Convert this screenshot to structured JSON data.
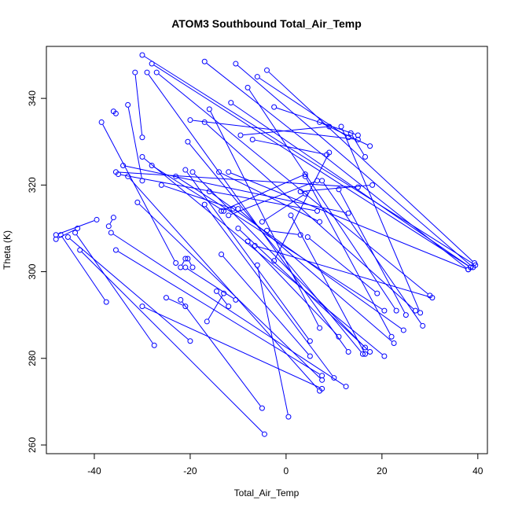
{
  "chart_data": {
    "type": "line",
    "title": "ATOM3 Southbound Total_Air_Temp",
    "xlabel": "Total_Air_Temp",
    "ylabel": "Theta (K)",
    "xlim": [
      -50,
      42
    ],
    "ylim": [
      258,
      352
    ],
    "xticks": [
      -40,
      -20,
      0,
      20,
      40
    ],
    "yticks": [
      260,
      280,
      300,
      320,
      340
    ],
    "xtick_labels": [
      "-40",
      "-20",
      "0",
      "20",
      "40"
    ],
    "ytick_labels": [
      "260",
      "280",
      "300",
      "320",
      "340"
    ],
    "grid": false,
    "legend": "none",
    "marker": "open-circle",
    "color": "#0000ff",
    "series": [
      {
        "x": [
          -30,
          39.5
        ],
        "y": [
          350,
          301.5
        ]
      },
      {
        "x": [
          -28,
          38.5
        ],
        "y": [
          348,
          301
        ]
      },
      {
        "x": [
          -17,
          38
        ],
        "y": [
          348.5,
          300.5
        ]
      },
      {
        "x": [
          -10.5,
          39
        ],
        "y": [
          348,
          301
        ]
      },
      {
        "x": [
          -4,
          39.3
        ],
        "y": [
          346.5,
          302
        ]
      },
      {
        "x": [
          -27,
          30
        ],
        "y": [
          346,
          294.5
        ]
      },
      {
        "x": [
          -31.5,
          -30
        ],
        "y": [
          346,
          331
        ]
      },
      {
        "x": [
          -29,
          13
        ],
        "y": [
          346,
          281.5
        ]
      },
      {
        "x": [
          -33,
          -30
        ],
        "y": [
          338.5,
          321
        ]
      },
      {
        "x": [
          -36,
          -35.5
        ],
        "y": [
          337,
          336.5
        ]
      },
      {
        "x": [
          -38.5,
          -23
        ],
        "y": [
          334.5,
          302
        ]
      },
      {
        "x": [
          -16,
          7
        ],
        "y": [
          337.5,
          287
        ]
      },
      {
        "x": [
          -20,
          15
        ],
        "y": [
          335,
          330.5
        ]
      },
      {
        "x": [
          -17,
          27
        ],
        "y": [
          334.5,
          291
        ]
      },
      {
        "x": [
          -11.5,
          38.5
        ],
        "y": [
          339,
          301
        ]
      },
      {
        "x": [
          -6,
          13
        ],
        "y": [
          345,
          331
        ]
      },
      {
        "x": [
          -8,
          23
        ],
        "y": [
          342.5,
          291
        ]
      },
      {
        "x": [
          -2.5,
          15
        ],
        "y": [
          338,
          331.5
        ]
      },
      {
        "x": [
          7,
          17.5
        ],
        "y": [
          334.5,
          329
        ]
      },
      {
        "x": [
          11.5,
          28
        ],
        "y": [
          333.5,
          290.5
        ]
      },
      {
        "x": [
          13.5,
          16.5
        ],
        "y": [
          332,
          326.5
        ]
      },
      {
        "x": [
          -9.5,
          9
        ],
        "y": [
          331.5,
          333.5
        ]
      },
      {
        "x": [
          -7,
          8.5
        ],
        "y": [
          330.5,
          327
        ]
      },
      {
        "x": [
          -20.5,
          16
        ],
        "y": [
          330,
          281
        ]
      },
      {
        "x": [
          -30,
          20.5
        ],
        "y": [
          326.5,
          280.5
        ]
      },
      {
        "x": [
          -19.5,
          16.5
        ],
        "y": [
          323,
          282.5
        ]
      },
      {
        "x": [
          -12,
          38
        ],
        "y": [
          323,
          300.5
        ]
      },
      {
        "x": [
          -35.5,
          15
        ],
        "y": [
          323,
          319.5
        ]
      },
      {
        "x": [
          -34,
          13
        ],
        "y": [
          324.5,
          313.5
        ]
      },
      {
        "x": [
          -35,
          6.5
        ],
        "y": [
          322.5,
          314
        ]
      },
      {
        "x": [
          -16,
          24.5
        ],
        "y": [
          318.5,
          286.5
        ]
      },
      {
        "x": [
          -23,
          20.5
        ],
        "y": [
          322,
          291
        ]
      },
      {
        "x": [
          -28,
          -13
        ],
        "y": [
          324.5,
          314
        ]
      },
      {
        "x": [
          -33,
          7
        ],
        "y": [
          322,
          272.5
        ]
      },
      {
        "x": [
          -26,
          -11
        ],
        "y": [
          320,
          314.5
        ]
      },
      {
        "x": [
          -31,
          7.5
        ],
        "y": [
          316,
          275
        ]
      },
      {
        "x": [
          -17,
          10
        ],
        "y": [
          315.5,
          275.5
        ]
      },
      {
        "x": [
          -14,
          7
        ],
        "y": [
          323,
          311.5
        ]
      },
      {
        "x": [
          -21,
          5
        ],
        "y": [
          323.5,
          284
        ]
      },
      {
        "x": [
          -13.5,
          4
        ],
        "y": [
          314,
          322.5
        ]
      },
      {
        "x": [
          -10,
          17.5
        ],
        "y": [
          310,
          281.5
        ]
      },
      {
        "x": [
          -12,
          6.5
        ],
        "y": [
          313,
          321
        ]
      },
      {
        "x": [
          -4,
          3
        ],
        "y": [
          309.5,
          308.5
        ]
      },
      {
        "x": [
          -8,
          11
        ],
        "y": [
          307,
          285
        ]
      },
      {
        "x": [
          -6,
          0.5
        ],
        "y": [
          301.5,
          266.5
        ]
      },
      {
        "x": [
          -2.5,
          9
        ],
        "y": [
          302.5,
          327.5
        ]
      },
      {
        "x": [
          -6.5,
          30.5
        ],
        "y": [
          306,
          294
        ]
      },
      {
        "x": [
          -5,
          4
        ],
        "y": [
          311.5,
          318
        ]
      },
      {
        "x": [
          1,
          16.5
        ],
        "y": [
          313,
          281
        ]
      },
      {
        "x": [
          -10,
          22.5
        ],
        "y": [
          314.5,
          283.5
        ]
      },
      {
        "x": [
          3,
          18
        ],
        "y": [
          318.5,
          320
        ]
      },
      {
        "x": [
          4,
          22
        ],
        "y": [
          322,
          285
        ]
      },
      {
        "x": [
          7.5,
          28.5
        ],
        "y": [
          321,
          287.5
        ]
      },
      {
        "x": [
          11,
          25
        ],
        "y": [
          319,
          290
        ]
      },
      {
        "x": [
          4.5,
          19
        ],
        "y": [
          308,
          295
        ]
      },
      {
        "x": [
          -36.5,
          12.5
        ],
        "y": [
          309,
          273.5
        ]
      },
      {
        "x": [
          -35.5,
          7.5
        ],
        "y": [
          305,
          276
        ]
      },
      {
        "x": [
          -37,
          -36
        ],
        "y": [
          310.5,
          312.5
        ]
      },
      {
        "x": [
          -48,
          -39.5
        ],
        "y": [
          308.5,
          312
        ]
      },
      {
        "x": [
          -48,
          -43.5
        ],
        "y": [
          307.5,
          310
        ]
      },
      {
        "x": [
          -47,
          -37.5
        ],
        "y": [
          308.5,
          293
        ]
      },
      {
        "x": [
          -44,
          -27.5
        ],
        "y": [
          309,
          283
        ]
      },
      {
        "x": [
          -45.5,
          -20
        ],
        "y": [
          308,
          284
        ]
      },
      {
        "x": [
          -43,
          -4.5
        ],
        "y": [
          305,
          262.5
        ]
      },
      {
        "x": [
          -30,
          7.5
        ],
        "y": [
          292,
          273
        ]
      },
      {
        "x": [
          -25,
          -21
        ],
        "y": [
          294,
          292
        ]
      },
      {
        "x": [
          -22,
          -5
        ],
        "y": [
          293.5,
          268.5
        ]
      },
      {
        "x": [
          -16.5,
          -13
        ],
        "y": [
          288.5,
          295
        ]
      },
      {
        "x": [
          -14.5,
          -12
        ],
        "y": [
          295.5,
          292
        ]
      },
      {
        "x": [
          -13.5,
          5
        ],
        "y": [
          304,
          280.5
        ]
      },
      {
        "x": [
          -20.5,
          -19.5
        ],
        "y": [
          303,
          301
        ]
      },
      {
        "x": [
          -21,
          -10.5
        ],
        "y": [
          301,
          293.5
        ]
      },
      {
        "x": [
          -22,
          -21
        ],
        "y": [
          301,
          303
        ]
      }
    ]
  }
}
